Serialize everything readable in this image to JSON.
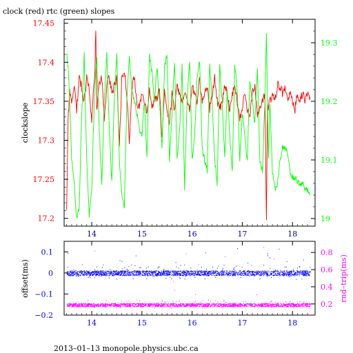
{
  "chart_data": [
    {
      "type": "line",
      "title": "clock (red) rtc (green) slopes",
      "ylabel_left": "clockslope",
      "ylabel_right": "",
      "x_ticks": [
        "14",
        "15",
        "16",
        "17",
        "18"
      ],
      "xlim": [
        13.45,
        18.45
      ],
      "y_left_ticks": [
        "17.2",
        "17.25",
        "17.3",
        "17.35",
        "17.4",
        "17.45"
      ],
      "y_left_lim": [
        17.19,
        17.455
      ],
      "y_right_ticks": [
        "19",
        "19.1",
        "19.2",
        "19.3"
      ],
      "y_right_lim": [
        18.987,
        19.34
      ],
      "colors": {
        "left_axis": "#ff0000",
        "right_axis": "#00ff00",
        "x_axis": "#000080"
      },
      "series": [
        {
          "color": "#ff0000",
          "axis": "left",
          "points": [
            [
              13.5,
              17.21
            ],
            [
              13.53,
              17.33
            ],
            [
              13.56,
              17.36
            ],
            [
              13.6,
              17.35
            ],
            [
              13.65,
              17.37
            ],
            [
              13.7,
              17.34
            ],
            [
              13.75,
              17.38
            ],
            [
              13.8,
              17.37
            ],
            [
              13.85,
              17.35
            ],
            [
              13.9,
              17.38
            ],
            [
              13.95,
              17.37
            ],
            [
              14.0,
              17.32
            ],
            [
              14.03,
              17.36
            ],
            [
              14.06,
              17.38
            ],
            [
              14.08,
              17.445
            ],
            [
              14.1,
              17.34
            ],
            [
              14.15,
              17.37
            ],
            [
              14.2,
              17.38
            ],
            [
              14.25,
              17.33
            ],
            [
              14.3,
              17.37
            ],
            [
              14.35,
              17.38
            ],
            [
              14.4,
              17.36
            ],
            [
              14.45,
              17.37
            ],
            [
              14.5,
              17.38
            ],
            [
              14.55,
              17.29
            ],
            [
              14.6,
              17.38
            ],
            [
              14.65,
              17.39
            ],
            [
              14.7,
              17.36
            ],
            [
              14.75,
              17.3
            ],
            [
              14.8,
              17.37
            ],
            [
              14.85,
              17.38
            ],
            [
              14.9,
              17.35
            ],
            [
              14.95,
              17.34
            ],
            [
              15.0,
              17.36
            ],
            [
              15.05,
              17.35
            ],
            [
              15.1,
              17.33
            ],
            [
              15.15,
              17.37
            ],
            [
              15.2,
              17.34
            ],
            [
              15.25,
              17.36
            ],
            [
              15.3,
              17.35
            ],
            [
              15.35,
              17.37
            ],
            [
              15.4,
              17.3
            ],
            [
              15.45,
              17.36
            ],
            [
              15.5,
              17.34
            ],
            [
              15.55,
              17.32
            ],
            [
              15.6,
              17.36
            ],
            [
              15.65,
              17.34
            ],
            [
              15.7,
              17.37
            ],
            [
              15.75,
              17.36
            ],
            [
              15.8,
              17.35
            ],
            [
              15.85,
              17.36
            ],
            [
              15.9,
              17.35
            ],
            [
              15.95,
              17.34
            ],
            [
              16.0,
              17.37
            ],
            [
              16.05,
              17.36
            ],
            [
              16.1,
              17.35
            ],
            [
              16.15,
              17.38
            ],
            [
              16.2,
              17.35
            ],
            [
              16.25,
              17.36
            ],
            [
              16.3,
              17.37
            ],
            [
              16.35,
              17.34
            ],
            [
              16.4,
              17.36
            ],
            [
              16.45,
              17.38
            ],
            [
              16.5,
              17.35
            ],
            [
              16.55,
              17.34
            ],
            [
              16.6,
              17.35
            ],
            [
              16.65,
              17.37
            ],
            [
              16.7,
              17.36
            ],
            [
              16.75,
              17.34
            ],
            [
              16.8,
              17.36
            ],
            [
              16.85,
              17.37
            ],
            [
              16.9,
              17.35
            ],
            [
              16.95,
              17.33
            ],
            [
              17.0,
              17.34
            ],
            [
              17.05,
              17.36
            ],
            [
              17.1,
              17.34
            ],
            [
              17.15,
              17.33
            ],
            [
              17.2,
              17.36
            ],
            [
              17.25,
              17.37
            ],
            [
              17.3,
              17.33
            ],
            [
              17.35,
              17.34
            ],
            [
              17.4,
              17.35
            ],
            [
              17.45,
              17.36
            ],
            [
              17.48,
              17.2
            ],
            [
              17.5,
              17.34
            ],
            [
              17.55,
              17.35
            ],
            [
              17.6,
              17.36
            ],
            [
              17.65,
              17.35
            ],
            [
              17.7,
              17.37
            ],
            [
              17.75,
              17.37
            ],
            [
              17.8,
              17.36
            ],
            [
              17.85,
              17.37
            ],
            [
              17.9,
              17.35
            ],
            [
              17.95,
              17.36
            ],
            [
              18.0,
              17.35
            ],
            [
              18.05,
              17.34
            ],
            [
              18.1,
              17.36
            ],
            [
              18.15,
              17.35
            ],
            [
              18.2,
              17.36
            ],
            [
              18.25,
              17.35
            ],
            [
              18.3,
              17.36
            ],
            [
              18.35,
              17.355
            ]
          ]
        },
        {
          "color": "#00ff00",
          "axis": "right",
          "points": [
            [
              13.5,
              19.28
            ],
            [
              13.53,
              19.26
            ],
            [
              13.56,
              19.2
            ],
            [
              13.6,
              19.1
            ],
            [
              13.65,
              19.06
            ],
            [
              13.7,
              19.0
            ],
            [
              13.75,
              19.02
            ],
            [
              13.8,
              19.18
            ],
            [
              13.85,
              19.28
            ],
            [
              13.9,
              19.1
            ],
            [
              13.95,
              19.0
            ],
            [
              14.0,
              19.05
            ],
            [
              14.05,
              19.2
            ],
            [
              14.1,
              19.28
            ],
            [
              14.15,
              19.15
            ],
            [
              14.2,
              19.06
            ],
            [
              14.25,
              19.2
            ],
            [
              14.3,
              19.28
            ],
            [
              14.35,
              19.15
            ],
            [
              14.4,
              19.06
            ],
            [
              14.45,
              19.2
            ],
            [
              14.5,
              19.28
            ],
            [
              14.55,
              19.1
            ],
            [
              14.6,
              19.04
            ],
            [
              14.65,
              19.02
            ],
            [
              14.7,
              19.2
            ],
            [
              14.75,
              19.28
            ],
            [
              14.8,
              19.22
            ],
            [
              14.85,
              19.2
            ],
            [
              14.9,
              19.18
            ],
            [
              14.95,
              19.15
            ],
            [
              15.0,
              19.14
            ],
            [
              15.05,
              19.2
            ],
            [
              15.1,
              19.1
            ],
            [
              15.15,
              19.28
            ],
            [
              15.2,
              19.25
            ],
            [
              15.25,
              19.2
            ],
            [
              15.3,
              19.26
            ],
            [
              15.35,
              19.2
            ],
            [
              15.4,
              19.12
            ],
            [
              15.45,
              19.26
            ],
            [
              15.5,
              19.28
            ],
            [
              15.55,
              19.1
            ],
            [
              15.6,
              19.18
            ],
            [
              15.65,
              19.27
            ],
            [
              15.7,
              19.1
            ],
            [
              15.75,
              19.15
            ],
            [
              15.8,
              19.26
            ],
            [
              15.85,
              19.05
            ],
            [
              15.9,
              19.2
            ],
            [
              15.95,
              19.27
            ],
            [
              16.0,
              19.1
            ],
            [
              16.05,
              19.14
            ],
            [
              16.1,
              19.24
            ],
            [
              16.15,
              19.27
            ],
            [
              16.2,
              19.12
            ],
            [
              16.25,
              19.1
            ],
            [
              16.3,
              19.08
            ],
            [
              16.35,
              19.26
            ],
            [
              16.4,
              19.2
            ],
            [
              16.45,
              19.1
            ],
            [
              16.5,
              19.06
            ],
            [
              16.55,
              19.26
            ],
            [
              16.6,
              19.2
            ],
            [
              16.65,
              19.1
            ],
            [
              16.7,
              19.22
            ],
            [
              16.75,
              19.14
            ],
            [
              16.8,
              19.08
            ],
            [
              16.85,
              19.26
            ],
            [
              16.9,
              19.22
            ],
            [
              16.95,
              19.1
            ],
            [
              17.0,
              19.18
            ],
            [
              17.05,
              19.14
            ],
            [
              17.1,
              19.1
            ],
            [
              17.15,
              19.24
            ],
            [
              17.2,
              19.2
            ],
            [
              17.25,
              19.16
            ],
            [
              17.3,
              19.26
            ],
            [
              17.35,
              19.1
            ],
            [
              17.4,
              19.08
            ],
            [
              17.45,
              19.2
            ],
            [
              17.48,
              19.32
            ],
            [
              17.52,
              19.1
            ],
            [
              17.55,
              19.2
            ],
            [
              17.6,
              19.08
            ],
            [
              17.65,
              19.05
            ],
            [
              17.7,
              19.06
            ],
            [
              17.75,
              19.1
            ],
            [
              17.8,
              19.12
            ],
            [
              17.85,
              19.12
            ],
            [
              17.9,
              19.11
            ],
            [
              17.95,
              19.08
            ],
            [
              18.0,
              19.07
            ],
            [
              18.05,
              19.07
            ],
            [
              18.1,
              19.06
            ],
            [
              18.15,
              19.06
            ],
            [
              18.2,
              19.06
            ],
            [
              18.25,
              19.05
            ],
            [
              18.3,
              19.05
            ],
            [
              18.35,
              19.04
            ]
          ]
        }
      ]
    },
    {
      "type": "scatter",
      "ylabel_left": "offset(ms)",
      "ylabel_right": "rnd–trip(ms)",
      "x_ticks": [
        "14",
        "15",
        "16",
        "17",
        "18"
      ],
      "xlim": [
        13.45,
        18.45
      ],
      "y_left_ticks": [
        "0.1",
        "0",
        "−0.1",
        "−0.2"
      ],
      "y_left_lim": [
        -0.2,
        0.15
      ],
      "y_right_ticks": [
        "0.8",
        "0.6",
        "0.4",
        "0.2"
      ],
      "y_right_lim": [
        0.07,
        0.93
      ],
      "colors": {
        "left_axis": "#0000ff",
        "right_axis": "#ff00ff",
        "x_axis": "#0000ff"
      },
      "series": [
        {
          "color": "#0000ff",
          "axis": "left",
          "band": [
            -0.012,
            0.012
          ],
          "spread": [
            -0.03,
            0.04
          ],
          "x_range": [
            13.5,
            18.35
          ]
        },
        {
          "color": "#ff00ff",
          "axis": "right",
          "band": [
            0.17,
            0.21
          ],
          "spread": [
            0.15,
            0.25
          ],
          "x_range": [
            13.5,
            18.35
          ]
        }
      ]
    }
  ],
  "footer": "2013–01–13 monopole.physics.ubc.ca"
}
